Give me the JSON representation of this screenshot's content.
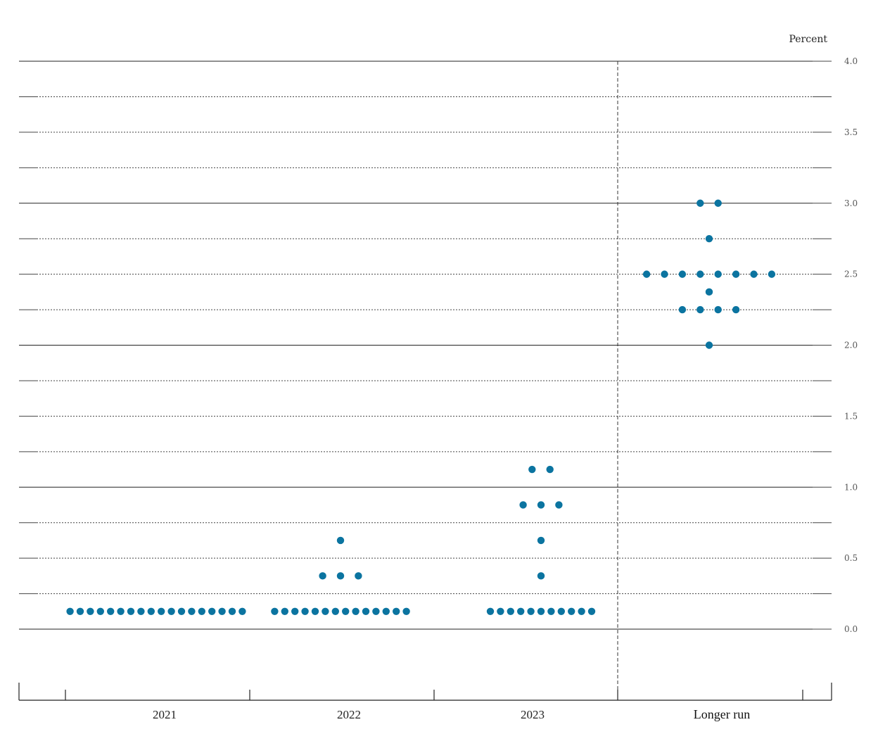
{
  "chart_data": {
    "type": "scatter",
    "title": "",
    "unit_label": "Percent",
    "ylim": [
      -0.4,
      4.0
    ],
    "y_ticks": [
      {
        "value": 4.0,
        "label": "4.0"
      },
      {
        "value": 3.5,
        "label": "3.5"
      },
      {
        "value": 3.0,
        "label": "3.0"
      },
      {
        "value": 2.5,
        "label": "2.5"
      },
      {
        "value": 2.0,
        "label": "2.0"
      },
      {
        "value": 1.5,
        "label": "1.5"
      },
      {
        "value": 1.0,
        "label": "1.0"
      },
      {
        "value": 0.5,
        "label": "0.5"
      },
      {
        "value": 0.0,
        "label": "0.0"
      }
    ],
    "gridlines": {
      "solid": [
        0.0,
        1.0,
        2.0,
        3.0,
        4.0
      ],
      "dotted": [
        0.25,
        0.5,
        0.75,
        1.25,
        1.5,
        1.75,
        2.25,
        2.5,
        2.75,
        3.25,
        3.5,
        3.75
      ]
    },
    "categories": [
      "2021",
      "2022",
      "2023",
      "Longer run"
    ],
    "dot_color": "#0b74a0",
    "points": [
      {
        "category": "2021",
        "value": 0.125,
        "count": 18
      },
      {
        "category": "2022",
        "value": 0.625,
        "count": 1
      },
      {
        "category": "2022",
        "value": 0.375,
        "count": 3
      },
      {
        "category": "2022",
        "value": 0.125,
        "count": 14
      },
      {
        "category": "2023",
        "value": 1.125,
        "count": 2
      },
      {
        "category": "2023",
        "value": 0.875,
        "count": 3
      },
      {
        "category": "2023",
        "value": 0.625,
        "count": 1
      },
      {
        "category": "2023",
        "value": 0.375,
        "count": 1
      },
      {
        "category": "2023",
        "value": 0.125,
        "count": 11
      },
      {
        "category": "Longer run",
        "value": 3.0,
        "count": 2
      },
      {
        "category": "Longer run",
        "value": 2.75,
        "count": 1
      },
      {
        "category": "Longer run",
        "value": 2.5,
        "count": 8
      },
      {
        "category": "Longer run",
        "value": 2.375,
        "count": 1
      },
      {
        "category": "Longer run",
        "value": 2.25,
        "count": 4
      },
      {
        "category": "Longer run",
        "value": 2.0,
        "count": 1
      }
    ]
  }
}
